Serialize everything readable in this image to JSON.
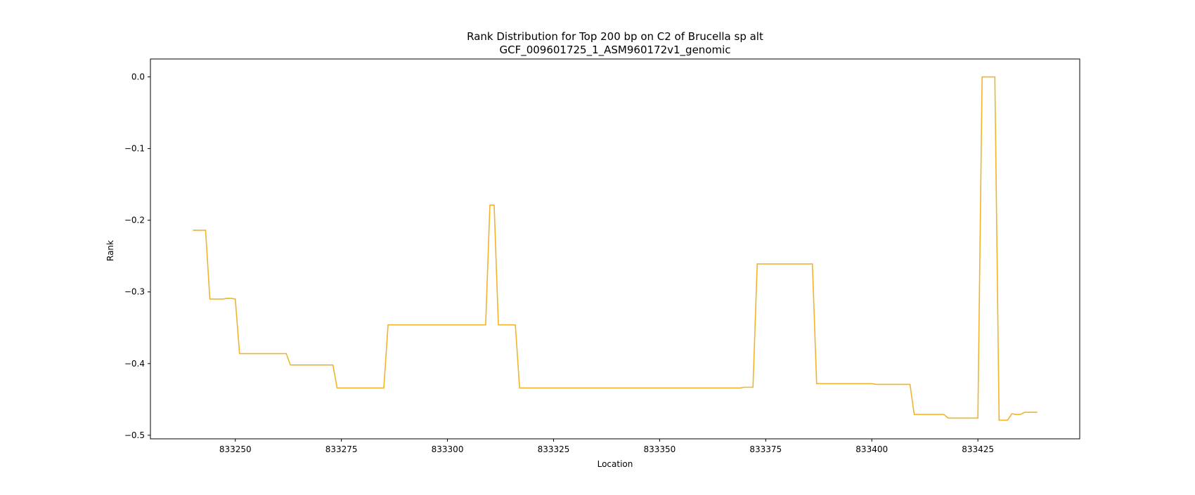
{
  "chart_data": {
    "type": "line",
    "title": "Rank Distribution for Top 200 bp on C2 of Brucella sp alt",
    "subtitle": "GCF_009601725_1_ASM960172v1_genomic",
    "xlabel": "Location",
    "ylabel": "Rank",
    "xlim": [
      833230,
      833449
    ],
    "ylim": [
      -0.505,
      0.025
    ],
    "xticks": [
      833250,
      833275,
      833300,
      833325,
      833350,
      833375,
      833400,
      833425
    ],
    "yticks": [
      0.0,
      -0.1,
      -0.2,
      -0.3,
      -0.4,
      -0.5
    ],
    "xtick_labels": [
      "833250",
      "833275",
      "833300",
      "833325",
      "833350",
      "833375",
      "833400",
      "833425"
    ],
    "ytick_labels": [
      "0.0",
      "−0.1",
      "−0.2",
      "−0.3",
      "−0.4",
      "−0.5"
    ],
    "grid": false,
    "series": [
      {
        "color": "#f0b42d",
        "x": [
          833240,
          833243,
          833244,
          833245,
          833247,
          833248,
          833249,
          833250,
          833251,
          833262,
          833263,
          833273,
          833274,
          833285,
          833286,
          833309,
          833310,
          833311,
          833312,
          833316,
          833317,
          833369,
          833370,
          833372,
          833373,
          833386,
          833387,
          833400,
          833401,
          833409,
          833410,
          833417,
          833418,
          833425,
          833426,
          833429,
          833430,
          833432,
          833433,
          833434,
          833435,
          833436,
          833439
        ],
        "y": [
          -0.214,
          -0.214,
          -0.31,
          -0.31,
          -0.31,
          -0.309,
          -0.309,
          -0.31,
          -0.386,
          -0.386,
          -0.402,
          -0.402,
          -0.434,
          -0.434,
          -0.346,
          -0.346,
          -0.179,
          -0.179,
          -0.346,
          -0.346,
          -0.434,
          -0.434,
          -0.433,
          -0.433,
          -0.261,
          -0.261,
          -0.428,
          -0.428,
          -0.429,
          -0.429,
          -0.471,
          -0.471,
          -0.476,
          -0.476,
          0.0,
          0.0,
          -0.479,
          -0.479,
          -0.47,
          -0.471,
          -0.471,
          -0.468,
          -0.468
        ]
      }
    ]
  }
}
